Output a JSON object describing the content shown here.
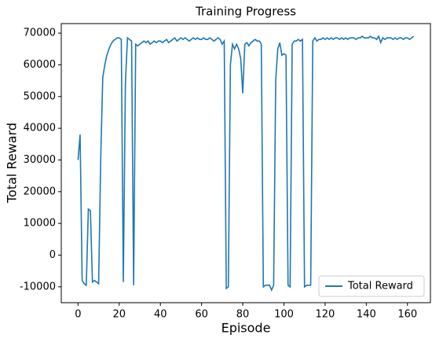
{
  "chart_data": {
    "type": "line",
    "title": "Training Progress",
    "xlabel": "Episode",
    "ylabel": "Total Reward",
    "x": [
      0,
      1,
      2,
      3,
      4,
      5,
      6,
      7,
      8,
      9,
      10,
      11,
      12,
      13,
      14,
      15,
      16,
      17,
      18,
      19,
      20,
      21,
      22,
      23,
      24,
      25,
      26,
      27,
      28,
      29,
      30,
      31,
      32,
      33,
      34,
      35,
      36,
      37,
      38,
      39,
      40,
      41,
      42,
      43,
      44,
      45,
      46,
      47,
      48,
      49,
      50,
      51,
      52,
      53,
      54,
      55,
      56,
      57,
      58,
      59,
      60,
      61,
      62,
      63,
      64,
      65,
      66,
      67,
      68,
      69,
      70,
      71,
      72,
      73,
      74,
      75,
      76,
      77,
      78,
      79,
      80,
      81,
      82,
      83,
      84,
      85,
      86,
      87,
      88,
      89,
      90,
      91,
      92,
      93,
      94,
      95,
      96,
      97,
      98,
      99,
      100,
      101,
      102,
      103,
      104,
      105,
      106,
      107,
      108,
      109,
      110,
      111,
      112,
      113,
      114,
      115,
      116,
      117,
      118,
      119,
      120,
      121,
      122,
      123,
      124,
      125,
      126,
      127,
      128,
      129,
      130,
      131,
      132,
      133,
      134,
      135,
      136,
      137,
      138,
      139,
      140,
      141,
      142,
      143,
      144,
      145,
      146,
      147,
      148,
      149,
      150,
      151,
      152,
      153,
      154,
      155,
      156,
      157,
      158,
      159,
      160,
      161,
      162,
      163
    ],
    "series": [
      {
        "name": "Total Reward",
        "color": "#1f77b4",
        "values": [
          30000,
          38000,
          -8000,
          -9000,
          -9500,
          14500,
          14000,
          -8500,
          -8000,
          -8500,
          -9000,
          30000,
          56000,
          60000,
          63000,
          65000,
          66500,
          67500,
          68000,
          68500,
          68500,
          68000,
          -8500,
          54000,
          68500,
          68000,
          67500,
          -9500,
          66500,
          66000,
          66500,
          67000,
          67500,
          67000,
          67500,
          66500,
          67000,
          67500,
          67000,
          67500,
          67500,
          67000,
          67500,
          68000,
          67000,
          67500,
          68000,
          68500,
          67500,
          68000,
          68500,
          68000,
          68500,
          68000,
          67500,
          68000,
          68500,
          68000,
          68500,
          68000,
          68000,
          68500,
          68000,
          68000,
          68500,
          68000,
          67500,
          68000,
          68500,
          68000,
          66500,
          67500,
          -10500,
          -10000,
          60000,
          66500,
          65000,
          66500,
          65000,
          62000,
          51000,
          66500,
          67000,
          66000,
          67000,
          67500,
          68000,
          67500,
          67500,
          66500,
          -10000,
          -9500,
          -9500,
          -9500,
          -11000,
          -9500,
          55000,
          65000,
          67000,
          63000,
          63500,
          63000,
          -9500,
          -10000,
          66500,
          67500,
          67500,
          68000,
          67500,
          68000,
          -10000,
          -9500,
          -9500,
          -9500,
          67500,
          68500,
          67500,
          68000,
          68000,
          68500,
          68000,
          68500,
          68000,
          68500,
          68000,
          68500,
          68500,
          68000,
          68500,
          68000,
          68500,
          68000,
          68500,
          68500,
          68500,
          68000,
          68500,
          68500,
          69000,
          68500,
          68500,
          68500,
          69000,
          68500,
          68500,
          68000,
          69000,
          67000,
          68500,
          68000,
          68500,
          68500,
          68500,
          68000,
          68500,
          68000,
          68500,
          68500,
          68000,
          68500,
          68500,
          68000,
          68500,
          69000
        ]
      }
    ],
    "xlim": [
      -8.15,
      171.15
    ],
    "xticks": [
      0,
      20,
      40,
      60,
      80,
      100,
      120,
      140,
      160
    ],
    "ylim": [
      -15000,
      73000
    ],
    "yticks": [
      -10000,
      0,
      10000,
      20000,
      30000,
      40000,
      50000,
      60000,
      70000
    ],
    "legend": "lower right"
  }
}
